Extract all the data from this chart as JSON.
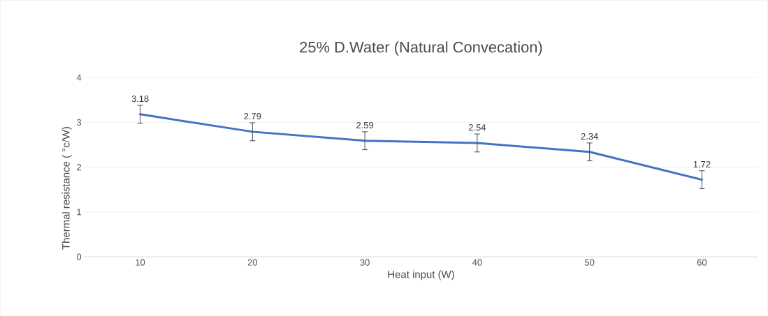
{
  "chart_data": {
    "type": "line",
    "title": "25% D.Water (Natural Convecation)",
    "xlabel": "Heat input (W)",
    "ylabel": "Thermal resistance ( °c/W)",
    "categories": [
      "10",
      "20",
      "30",
      "40",
      "50",
      "60"
    ],
    "values": [
      3.18,
      2.79,
      2.59,
      2.54,
      2.34,
      1.72
    ],
    "errors": [
      0.2,
      0.2,
      0.2,
      0.2,
      0.2,
      0.2
    ],
    "color": "#4472c4",
    "ylim": [
      0,
      4
    ],
    "yticks": [
      0,
      1,
      2,
      3,
      4
    ],
    "grid": "y",
    "data_labels": true,
    "marker": "none",
    "line_style": "solid"
  }
}
